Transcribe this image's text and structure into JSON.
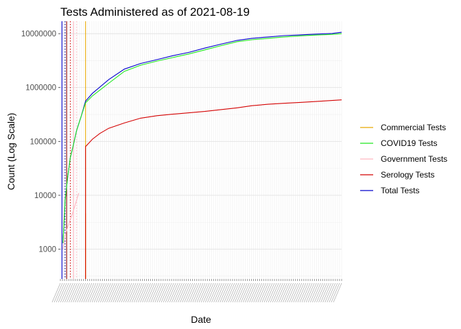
{
  "chart_data": {
    "type": "line",
    "title": "Tests Administered as of 2021-08-19",
    "xlabel": "Date",
    "ylabel": "Count (Log Scale)",
    "y_scale": "log10",
    "ylim": [
      280,
      17000000
    ],
    "y_ticks": [
      1000,
      10000,
      100000,
      1000000,
      10000000
    ],
    "y_tick_labels": [
      "1000",
      "10000",
      "100000",
      "1000000",
      "10000000"
    ],
    "xlim": [
      "2020-03-01",
      "2021-08-19"
    ],
    "grid": true,
    "legend_position": "right",
    "series": [
      {
        "name": "Commercial Tests",
        "color": "#e8a800",
        "x": [
          "2020-04-18",
          "2020-04-18"
        ],
        "y": [
          280,
          4600
        ]
      },
      {
        "name": "COVID19 Tests",
        "color": "#1ee81e",
        "x": [
          "2020-03-06",
          "2020-03-10",
          "2020-03-15",
          "2020-03-20",
          "2020-03-25",
          "2020-04-01",
          "2020-04-10",
          "2020-04-18",
          "2020-05-01",
          "2020-06-01",
          "2020-07-01",
          "2020-08-01",
          "2020-09-01",
          "2020-10-01",
          "2020-11-01",
          "2020-12-01",
          "2021-01-01",
          "2021-02-01",
          "2021-03-01",
          "2021-04-01",
          "2021-05-01",
          "2021-06-01",
          "2021-07-01",
          "2021-08-01",
          "2021-08-19"
        ],
        "y": [
          1300,
          8000,
          22000,
          50000,
          80000,
          160000,
          300000,
          520000,
          700000,
          1200000,
          2000000,
          2600000,
          3100000,
          3600000,
          4200000,
          5000000,
          6000000,
          7100000,
          7700000,
          8200000,
          8700000,
          9100000,
          9400000,
          9700000,
          10000000
        ]
      },
      {
        "name": "Government Tests",
        "color": "#ffb6c1",
        "x": [
          "2020-03-06",
          "2020-03-10",
          "2020-03-15",
          "2020-03-22",
          "2020-03-29",
          "2020-04-05"
        ],
        "y": [
          1000,
          1800,
          2600,
          4000,
          6500,
          11000
        ]
      },
      {
        "name": "Serology Tests",
        "color": "#d40000",
        "x": [
          "2020-04-18",
          "2020-04-18",
          "2020-05-01",
          "2020-05-15",
          "2020-06-01",
          "2020-07-01",
          "2020-08-01",
          "2020-09-01",
          "2020-10-01",
          "2020-11-01",
          "2020-12-01",
          "2021-01-01",
          "2021-02-01",
          "2021-03-01",
          "2021-04-01",
          "2021-05-01",
          "2021-06-01",
          "2021-07-01",
          "2021-08-19"
        ],
        "y": [
          280,
          80000,
          110000,
          140000,
          175000,
          220000,
          270000,
          300000,
          320000,
          340000,
          360000,
          390000,
          420000,
          460000,
          490000,
          510000,
          530000,
          550000,
          590000
        ]
      },
      {
        "name": "Total Tests",
        "color": "#0000cc",
        "x": [
          "2020-03-06",
          "2020-03-10",
          "2020-03-15",
          "2020-03-20",
          "2020-03-25",
          "2020-04-01",
          "2020-04-10",
          "2020-04-18",
          "2020-05-01",
          "2020-06-01",
          "2020-07-01",
          "2020-08-01",
          "2020-09-01",
          "2020-10-01",
          "2020-11-01",
          "2020-12-01",
          "2021-01-01",
          "2021-02-01",
          "2021-03-01",
          "2021-04-01",
          "2021-05-01",
          "2021-06-01",
          "2021-07-01",
          "2021-08-01",
          "2021-08-19"
        ],
        "y": [
          1300,
          8000,
          22000,
          50000,
          80000,
          160000,
          300000,
          560000,
          780000,
          1400000,
          2200000,
          2800000,
          3300000,
          3900000,
          4500000,
          5400000,
          6400000,
          7500000,
          8200000,
          8700000,
          9200000,
          9500000,
          9800000,
          10100000,
          10600000
        ]
      }
    ],
    "vertical_lines": [
      {
        "x": "2020-03-04",
        "color": "#0000cc",
        "style": "solid"
      },
      {
        "x": "2020-03-10",
        "color": "#00008b",
        "style": "dotted"
      },
      {
        "x": "2020-03-13",
        "color": "#8b0000",
        "style": "solid"
      },
      {
        "x": "2020-03-20",
        "color": "#d40000",
        "style": "dotted"
      },
      {
        "x": "2020-03-26",
        "color": "#ffb6c1",
        "style": "solid"
      },
      {
        "x": "2020-04-01",
        "color": "#ffb6c1",
        "style": "dotted"
      },
      {
        "x": "2020-04-18",
        "color": "#e8a800",
        "style": "solid"
      }
    ]
  }
}
